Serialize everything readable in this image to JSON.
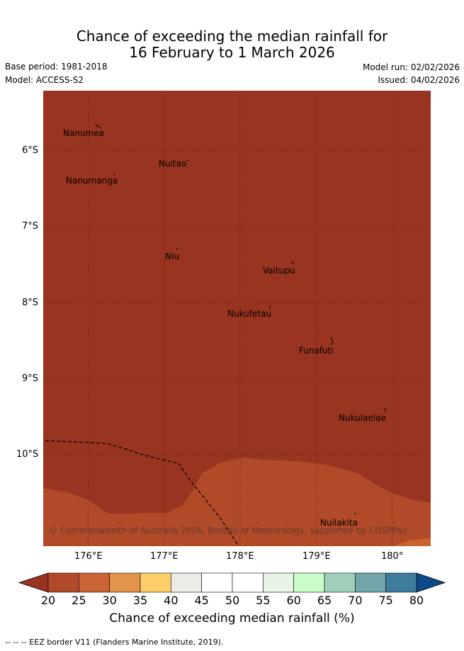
{
  "header": {
    "title_line1": "Chance of exceeding the median rainfall for",
    "title_line2": "16 February to 1 March 2026",
    "base_period": "Base period: 1981-2018",
    "model": "Model: ACCESS-S2",
    "model_run": "Model run: 02/02/2026",
    "issued": "Issued: 04/02/2026"
  },
  "map": {
    "region": "Tuvalu",
    "lat_labels": [
      "6°S",
      "7°S",
      "8°S",
      "9°S",
      "10°S"
    ],
    "lon_labels": [
      "176°E",
      "177°E",
      "178°E",
      "179°E",
      "180°"
    ],
    "islands": [
      "Nanumea",
      "Nuitao",
      "Nanumanga",
      "Niu",
      "Vaitupu",
      "Nukufetau",
      "Funafuti",
      "Nukulaelae",
      "Nuilakita"
    ],
    "copyright": "© Commonwealth of Australia 2026, Bureau of Meteorology, supported by COSPPac",
    "colors": {
      "dominant": "#993420",
      "secondary": "#b04a28",
      "tertiary": "#c9622f"
    }
  },
  "colorbar": {
    "ticks": [
      "20",
      "25",
      "30",
      "35",
      "40",
      "45",
      "50",
      "55",
      "60",
      "65",
      "70",
      "75",
      "80"
    ],
    "colors": [
      "#b04a28",
      "#cb6434",
      "#e2954a",
      "#fdcd6a",
      "#edebe8",
      "#ffffff",
      "#ffffff",
      "#e8f5e6",
      "#c9fcc9",
      "#9ecfba",
      "#70a6aa",
      "#3f7b9c"
    ],
    "under_color": "#993420",
    "over_color": "#0c4a87",
    "label": "Chance of exceeding median rainfall (%)"
  },
  "legend": {
    "eez_note": "--  --  -- EEZ border V11 (Flanders Marine Institute, 2019)."
  }
}
